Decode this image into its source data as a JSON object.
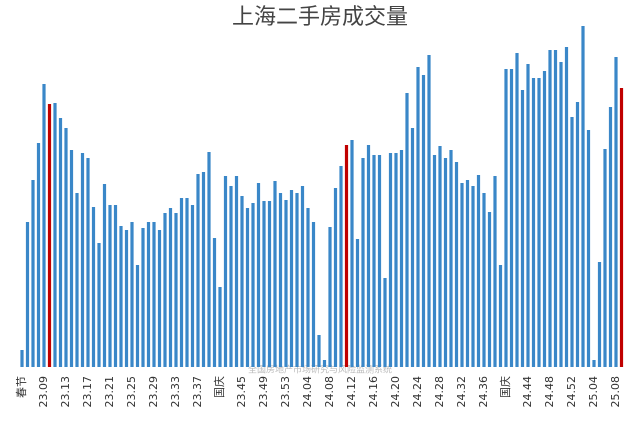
{
  "chart_data": {
    "type": "bar",
    "title": "上海二手房成交量",
    "annotation": "全国房地产市场研究与风险监测系统",
    "categories": [
      "春节",
      null,
      null,
      null,
      "23.09",
      null,
      null,
      null,
      "23.13",
      null,
      null,
      null,
      "23.17",
      null,
      null,
      null,
      "23.21",
      null,
      null,
      null,
      "23.25",
      null,
      null,
      null,
      "23.29",
      null,
      null,
      null,
      "23.33",
      null,
      null,
      null,
      "23.37",
      null,
      null,
      null,
      "国庆",
      null,
      null,
      null,
      "23.45",
      null,
      null,
      null,
      "23.49",
      null,
      null,
      null,
      "23.53",
      null,
      null,
      null,
      "24.04",
      null,
      null,
      null,
      "24.08",
      null,
      null,
      null,
      "24.12",
      null,
      null,
      null,
      "24.16",
      null,
      null,
      null,
      "24.20",
      null,
      null,
      null,
      "24.24",
      null,
      null,
      null,
      "24.28",
      null,
      null,
      null,
      "24.32",
      null,
      null,
      null,
      "24.36",
      null,
      null,
      null,
      "国庆",
      null,
      null,
      null,
      "24.44",
      null,
      null,
      null,
      "24.48",
      null,
      null,
      null,
      "24.52",
      null,
      null,
      null,
      "25.04",
      null,
      null,
      null,
      "25.08",
      null
    ],
    "values": [
      17,
      145,
      187,
      224,
      283,
      263,
      264,
      249,
      239,
      217,
      174,
      214,
      209,
      160,
      124,
      183,
      162,
      162,
      141,
      137,
      145,
      102,
      139,
      145,
      145,
      137,
      154,
      159,
      154,
      169,
      169,
      162,
      193,
      195,
      215,
      129,
      80,
      191,
      181,
      191,
      171,
      159,
      164,
      184,
      166,
      166,
      186,
      174,
      167,
      177,
      174,
      181,
      159,
      145,
      32,
      7,
      140,
      179,
      201,
      222,
      227,
      128,
      209,
      222,
      212,
      212,
      89,
      214,
      214,
      217,
      274,
      239,
      300,
      292,
      312,
      212,
      221,
      209,
      217,
      205,
      184,
      187,
      181,
      192,
      174,
      155,
      191,
      102,
      298,
      298,
      314,
      277,
      303,
      289,
      289,
      296,
      317,
      317,
      305,
      320,
      250,
      265,
      341,
      237,
      7,
      105,
      218,
      260,
      310,
      279
    ],
    "color": "#3a87c8",
    "highlight": {
      "color": "#c00000",
      "indices": [
        5,
        59,
        109
      ]
    },
    "ylim": [
      0,
      350
    ]
  }
}
